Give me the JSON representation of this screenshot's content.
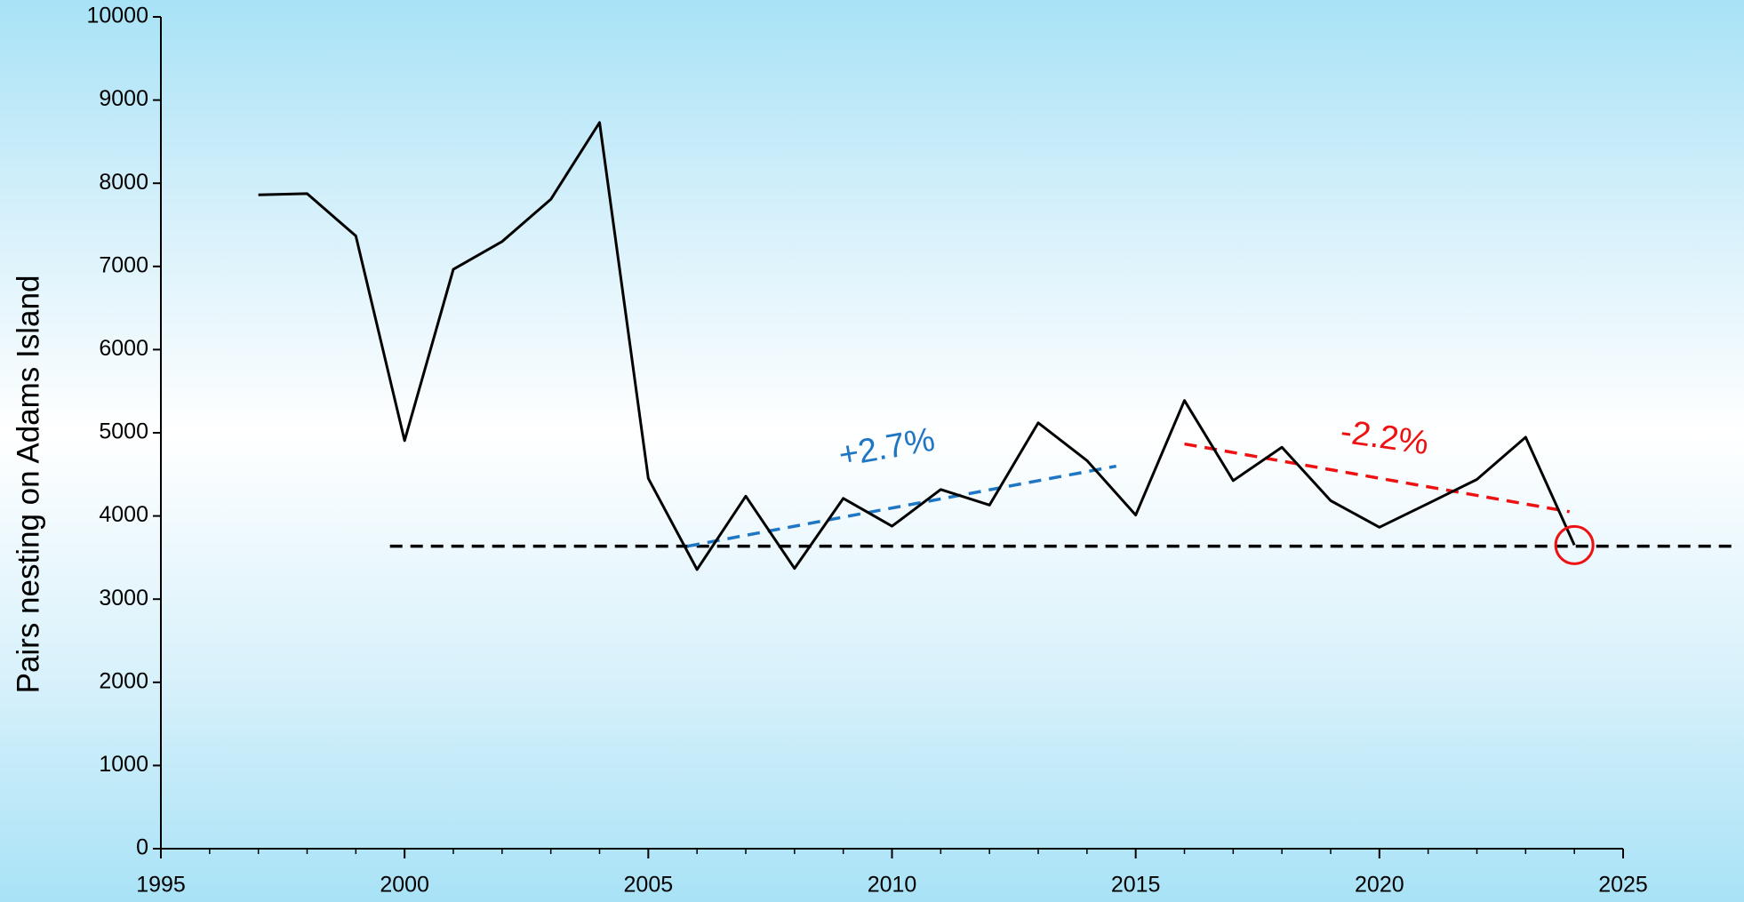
{
  "chart_data": {
    "type": "line",
    "y_label": "Pairs nesting on Adams Island",
    "x": [
      1997,
      1998,
      1999,
      2000,
      2001,
      2002,
      2003,
      2004,
      2005,
      2006,
      2007,
      2008,
      2009,
      2010,
      2011,
      2012,
      2013,
      2014,
      2015,
      2016,
      2017,
      2018,
      2019,
      2020,
      2021,
      2022,
      2023,
      2024
    ],
    "series": [
      {
        "name": "Pairs",
        "color": "#000000",
        "values": [
          7860,
          7875,
          7366,
          4906,
          6965,
          7299,
          7807,
          8730,
          4452,
          3356,
          4238,
          3369,
          4211,
          3877,
          4318,
          4131,
          5120,
          4666,
          4011,
          5388,
          4425,
          4826,
          4184,
          3864,
          4150,
          4439,
          4947,
          3650
        ]
      }
    ],
    "xlim": [
      1995,
      2025
    ],
    "xticks": [
      1995,
      2000,
      2005,
      2010,
      2015,
      2020,
      2025
    ],
    "ylim": [
      0,
      10000
    ],
    "yticks": [
      0,
      1000,
      2000,
      3000,
      4000,
      5000,
      6000,
      7000,
      8000,
      9000,
      10000
    ],
    "reference_lines": [
      {
        "color": "#000000",
        "x": [
          1999.7,
          2027.3
        ],
        "values": [
          3636,
          3636
        ]
      },
      {
        "color": "#1f77c4",
        "x": [
          2005.8,
          2014.6
        ],
        "values": [
          3636,
          4599
        ]
      },
      {
        "color": "#ee1111",
        "x": [
          2016.0,
          2023.9
        ],
        "values": [
          4866,
          4051
        ]
      }
    ],
    "annotations": [
      {
        "text": "+2.7%",
        "color": "#1f77c4",
        "x": 2009.9,
        "y": 4800,
        "angle": -10
      },
      {
        "text": "-2.2%",
        "color": "#ee1111",
        "x": 2020.1,
        "y": 4920,
        "angle": 8
      }
    ],
    "highlight": {
      "x": 2024,
      "y": 3650,
      "color": "#ee1111"
    }
  }
}
